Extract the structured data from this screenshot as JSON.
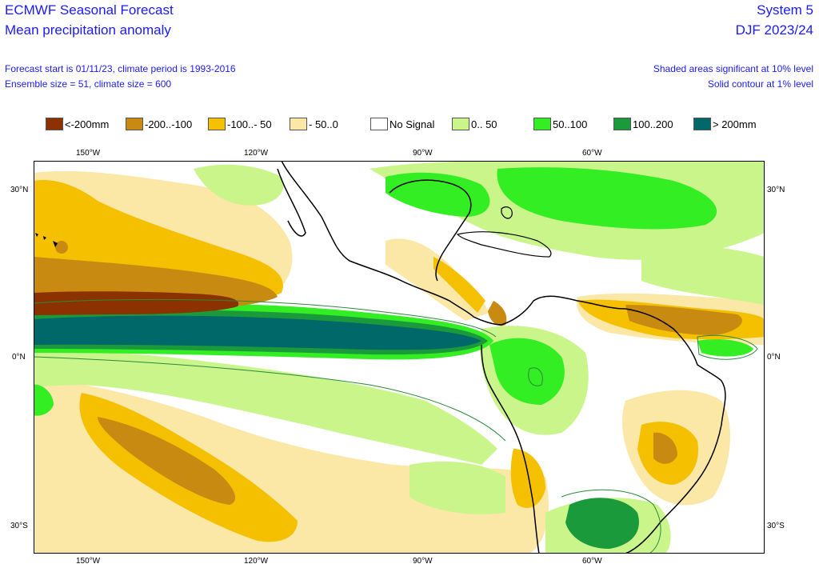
{
  "header": {
    "title": "ECMWF Seasonal Forecast",
    "subtitle": "Mean precipitation anomaly",
    "forecast_line": "Forecast start is 01/11/23, climate period is 1993-2016",
    "ensemble_line": "Ensemble size = 51, climate size = 600",
    "system": "System 5",
    "season": "DJF 2023/24",
    "shade_note": "Shaded areas significant at 10% level",
    "contour_note": "Solid contour at 1% level"
  },
  "legend": [
    {
      "label": "<-200mm",
      "color": "#8b3200"
    },
    {
      "label": "-200..-100",
      "color": "#c88a10"
    },
    {
      "label": "-100..- 50",
      "color": "#f5c000"
    },
    {
      "label": "- 50..0",
      "color": "#fbe7a6"
    },
    {
      "label": "No Signal",
      "color": "#ffffff"
    },
    {
      "label": "0.. 50",
      "color": "#c9f58a"
    },
    {
      "label": "50..100",
      "color": "#33ee22"
    },
    {
      "label": "100..200",
      "color": "#1a9a3a"
    },
    {
      "label": "> 200mm",
      "color": "#006868"
    }
  ],
  "axes": {
    "lon_labels": [
      "150°W",
      "120°W",
      "90°W",
      "60°W"
    ],
    "lat_labels": [
      "30°N",
      "0°N",
      "30°S"
    ]
  }
}
